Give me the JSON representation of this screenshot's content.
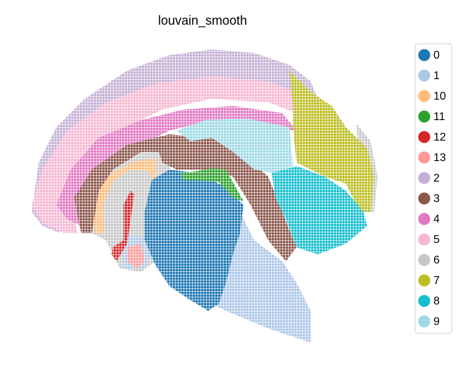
{
  "chart_data": {
    "type": "scatter",
    "title": "louvain_smooth",
    "series": [
      {
        "name": "0",
        "color": "#1f77b4"
      },
      {
        "name": "1",
        "color": "#aec7e8"
      },
      {
        "name": "10",
        "color": "#ffbb78"
      },
      {
        "name": "11",
        "color": "#2ca02c"
      },
      {
        "name": "12",
        "color": "#d62728"
      },
      {
        "name": "13",
        "color": "#ff9896"
      },
      {
        "name": "2",
        "color": "#c5b0d5"
      },
      {
        "name": "3",
        "color": "#8c564b"
      },
      {
        "name": "4",
        "color": "#e377c2"
      },
      {
        "name": "5",
        "color": "#f7b6d2"
      },
      {
        "name": "6",
        "color": "#c7c7c7"
      },
      {
        "name": "7",
        "color": "#bcbd22"
      },
      {
        "name": "8",
        "color": "#17becf"
      },
      {
        "name": "9",
        "color": "#9edae5"
      }
    ]
  }
}
